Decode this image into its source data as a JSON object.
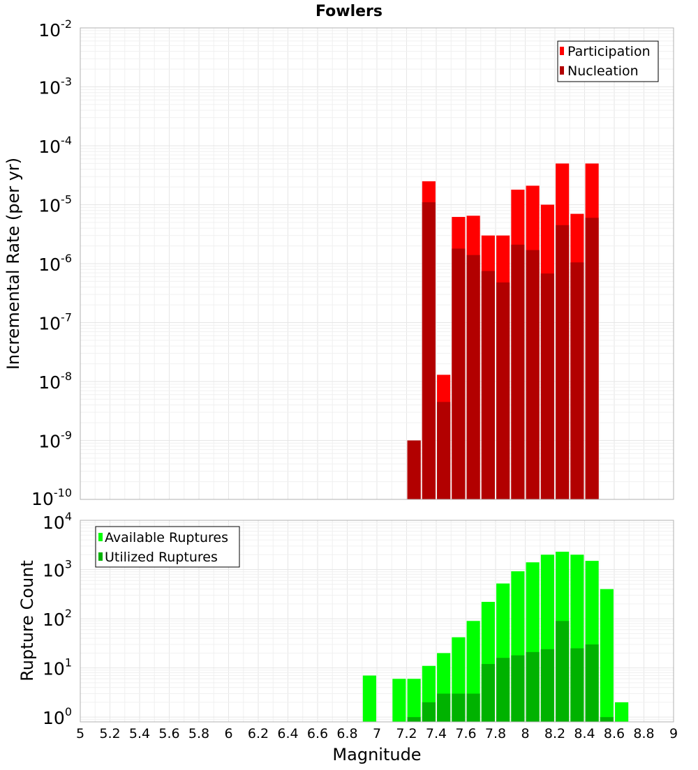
{
  "chart_data": [
    {
      "type": "bar",
      "title": "Fowlers",
      "ylabel": "Incremental Rate (per yr)",
      "yscale": "log",
      "ylim": [
        1e-10,
        0.01
      ],
      "y_ticks": [
        {
          "exp": "-10"
        },
        {
          "exp": "-9"
        },
        {
          "exp": "-8"
        },
        {
          "exp": "-7"
        },
        {
          "exp": "-6"
        },
        {
          "exp": "-5"
        },
        {
          "exp": "-4"
        },
        {
          "exp": "-3"
        },
        {
          "exp": "-2"
        }
      ],
      "legend_position": "top-right",
      "x": [
        7.25,
        7.35,
        7.45,
        7.55,
        7.65,
        7.75,
        7.85,
        7.95,
        8.05,
        8.15,
        8.25,
        8.35,
        8.45
      ],
      "series": [
        {
          "name": "Participation",
          "color": "#ff0000",
          "values": [
            1e-09,
            2.5e-05,
            1.3e-08,
            6.2e-06,
            6.5e-06,
            3e-06,
            3e-06,
            1.8e-05,
            2.1e-05,
            1e-05,
            5e-05,
            7e-06,
            5e-05
          ]
        },
        {
          "name": "Nucleation",
          "color": "#b20000",
          "values": [
            1e-09,
            1.1e-05,
            4.5e-09,
            1.8e-06,
            1.4e-06,
            7.5e-07,
            4.8e-07,
            2.1e-06,
            1.7e-06,
            6.8e-07,
            4.5e-06,
            1.05e-06,
            6e-06
          ]
        }
      ]
    },
    {
      "type": "bar",
      "xlabel": "Magnitude",
      "ylabel": "Rupture Count",
      "yscale": "log",
      "ylim": [
        0.8,
        10000
      ],
      "y_ticks": [
        {
          "exp": "0"
        },
        {
          "exp": "1"
        },
        {
          "exp": "2"
        },
        {
          "exp": "3"
        },
        {
          "exp": "4"
        }
      ],
      "xlim": [
        5,
        9
      ],
      "x_tick_labels": [
        "5",
        "5.2",
        "5.4",
        "5.6",
        "5.8",
        "6",
        "6.2",
        "6.4",
        "6.6",
        "6.8",
        "7",
        "7.2",
        "7.4",
        "7.6",
        "7.8",
        "8",
        "8.2",
        "8.4",
        "8.6",
        "8.8",
        "9"
      ],
      "legend_position": "top-left",
      "x": [
        6.95,
        7.15,
        7.25,
        7.35,
        7.45,
        7.55,
        7.65,
        7.75,
        7.85,
        7.95,
        8.05,
        8.15,
        8.25,
        8.35,
        8.45,
        8.55,
        8.65
      ],
      "series": [
        {
          "name": "Available Ruptures",
          "color": "#00ff00",
          "values": [
            7,
            6,
            6,
            11,
            20,
            42,
            90,
            220,
            520,
            920,
            1400,
            2000,
            2300,
            2000,
            1500,
            400,
            2
          ]
        },
        {
          "name": "Utilized Ruptures",
          "color": "#00b200",
          "values": [
            0,
            0,
            1,
            2,
            3,
            3,
            3,
            12,
            16,
            18,
            21,
            24,
            90,
            25,
            30,
            1,
            0
          ]
        }
      ]
    }
  ]
}
